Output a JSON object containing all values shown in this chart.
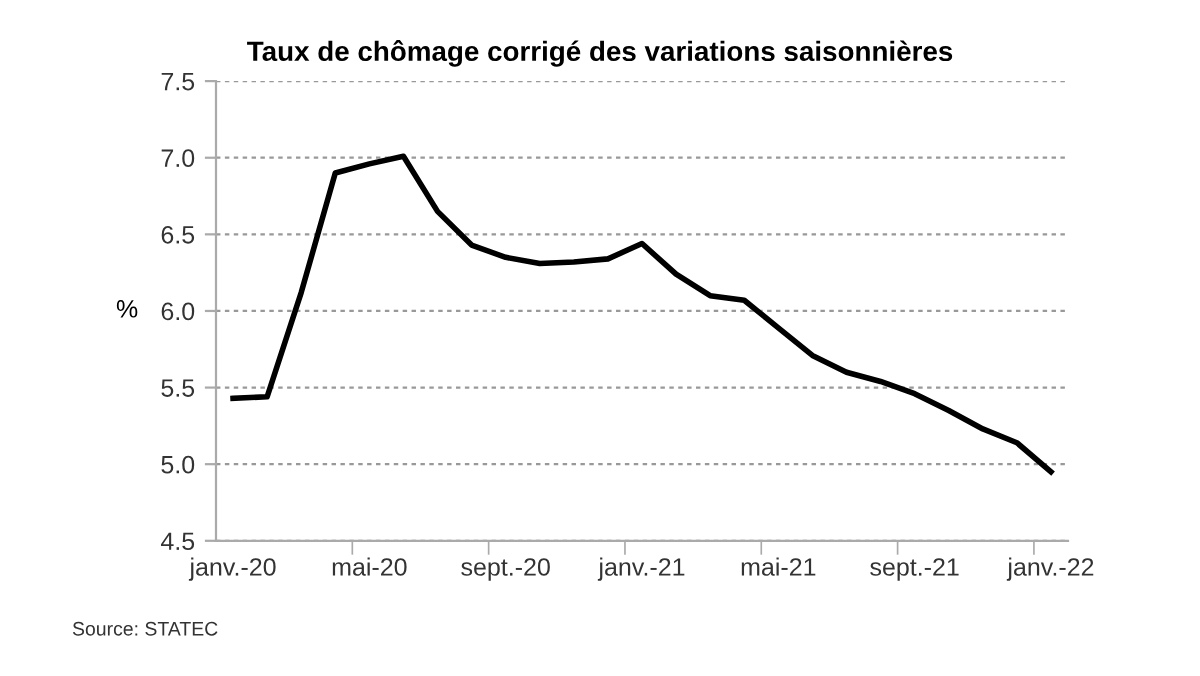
{
  "chart_data": {
    "type": "line",
    "title": "Taux de chômage corrigé des variations saisonnières",
    "ylabel": "%",
    "categories": [
      "janv.-20",
      null,
      null,
      null,
      "mai-20",
      null,
      null,
      null,
      "sept.-20",
      null,
      null,
      null,
      "janv.-21",
      null,
      null,
      null,
      "mai-21",
      null,
      null,
      null,
      "sept.-21",
      null,
      null,
      null,
      "janv.-22"
    ],
    "series": [
      {
        "color": "#000000",
        "values": [
          5.43,
          5.44,
          6.12,
          6.9,
          6.96,
          7.01,
          6.65,
          6.43,
          6.35,
          6.31,
          6.32,
          6.34,
          6.44,
          6.24,
          6.1,
          6.07,
          5.89,
          5.71,
          5.6,
          5.54,
          5.46,
          5.35,
          5.23,
          5.14,
          4.95
        ]
      }
    ],
    "ylim": [
      4.5,
      7.5
    ],
    "yticks": [
      {
        "value": 4.5,
        "label": "4.5"
      },
      {
        "value": 5.0,
        "label": "5.0"
      },
      {
        "value": 5.5,
        "label": "5.5"
      },
      {
        "value": 6.0,
        "label": "6.0"
      },
      {
        "value": 6.5,
        "label": "6.5"
      },
      {
        "value": 7.0,
        "label": "7.0"
      },
      {
        "value": 7.5,
        "label": "7.5"
      }
    ],
    "grid": "y",
    "line_style": "solid",
    "marker": "none",
    "legend": false,
    "annotations": [
      "Source: STATEC"
    ]
  }
}
